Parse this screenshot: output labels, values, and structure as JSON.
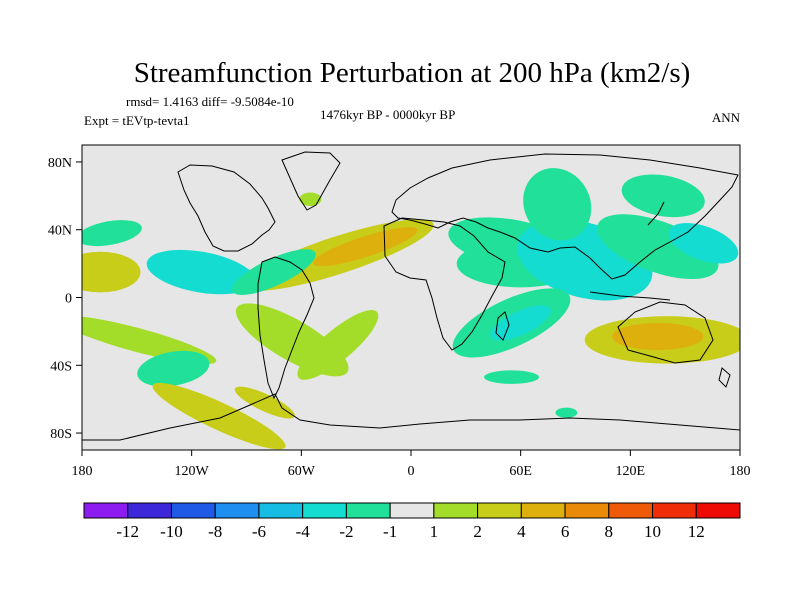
{
  "chart_data": {
    "type": "heatmap",
    "title": "Streamfunction Perturbation at 200 hPa (km2/s)",
    "stats_label": "rmsd= 1.4163 diff= -9.5084e-10",
    "experiment_label": "Expt = tEVtp-tevta1",
    "period_label": "1476kyr BP - 0000kyr BP",
    "season_label": "ANN",
    "x_axis": {
      "range": [
        -180,
        180
      ],
      "ticks": [
        {
          "value": -180,
          "label": "180"
        },
        {
          "value": -120,
          "label": "120W"
        },
        {
          "value": -60,
          "label": "60W"
        },
        {
          "value": 0,
          "label": "0"
        },
        {
          "value": 60,
          "label": "60E"
        },
        {
          "value": 120,
          "label": "120E"
        },
        {
          "value": 180,
          "label": "180"
        }
      ]
    },
    "y_axis": {
      "range": [
        -90,
        90
      ],
      "ticks": [
        {
          "value": 80,
          "label": "80N"
        },
        {
          "value": 40,
          "label": "40N"
        },
        {
          "value": 0,
          "label": "0"
        },
        {
          "value": -40,
          "label": "40S"
        },
        {
          "value": -80,
          "label": "80S"
        }
      ]
    },
    "colorbar": {
      "labels": [
        "-12",
        "-10",
        "-8",
        "-6",
        "-4",
        "-2",
        "-1",
        "1",
        "2",
        "4",
        "6",
        "8",
        "10",
        "12"
      ],
      "colors": [
        "#8c1cf0",
        "#3c28d8",
        "#1f5ae6",
        "#1e8ff0",
        "#17bde3",
        "#14dcd0",
        "#21e09a",
        "#e6e6e6",
        "#a4dc2a",
        "#c8cd1a",
        "#ddb00e",
        "#e98a08",
        "#ee5a07",
        "#ef2d06",
        "#ee0b05"
      ]
    },
    "background_color": "#e6e6e6",
    "features": [
      {
        "name": "n-atlantic-africa-high",
        "lon": -40,
        "lat": 25,
        "rx": 55,
        "ry": 11,
        "rot": -18,
        "value": 3
      },
      {
        "name": "n-atlantic-africa-core",
        "lon": -25,
        "lat": 30,
        "rx": 30,
        "ry": 6,
        "rot": -18,
        "value": 5
      },
      {
        "name": "indian-north-low",
        "lon": 55,
        "lat": 32,
        "rx": 35,
        "ry": 14,
        "rot": 10,
        "value": -1.5
      },
      {
        "name": "asia-low-west",
        "lon": 60,
        "lat": 20,
        "rx": 35,
        "ry": 14,
        "rot": 0,
        "value": -1.5
      },
      {
        "name": "asia-low-central",
        "lon": 95,
        "lat": 22,
        "rx": 38,
        "ry": 22,
        "rot": 15,
        "value": -2.5
      },
      {
        "name": "central-asia-north",
        "lon": 80,
        "lat": 55,
        "rx": 18,
        "ry": 22,
        "rot": -30,
        "value": -1.5
      },
      {
        "name": "w-pacific-band",
        "lon": 135,
        "lat": 30,
        "rx": 35,
        "ry": 15,
        "rot": 20,
        "value": -1.5
      },
      {
        "name": "nw-pacific-core",
        "lon": 160,
        "lat": 32,
        "rx": 20,
        "ry": 10,
        "rot": 20,
        "value": -3
      },
      {
        "name": "nw-pacific-north",
        "lon": 138,
        "lat": 60,
        "rx": 23,
        "ry": 12,
        "rot": 10,
        "value": -1.5
      },
      {
        "name": "nw-pacific-north-inner",
        "lon": 140,
        "lat": 62,
        "rx": 12,
        "ry": 5,
        "rot": 10,
        "value": -1.5
      },
      {
        "name": "ne-pacific-high",
        "lon": -170,
        "lat": 15,
        "rx": 22,
        "ry": 12,
        "rot": 0,
        "value": 3
      },
      {
        "name": "ne-pacific-low",
        "lon": -165,
        "lat": 38,
        "rx": 18,
        "ry": 7,
        "rot": -10,
        "value": -1.5
      },
      {
        "name": "c-america-low",
        "lon": -115,
        "lat": 15,
        "rx": 30,
        "ry": 12,
        "rot": 10,
        "value": -2.5
      },
      {
        "name": "c-america-core",
        "lon": -105,
        "lat": 14,
        "rx": 22,
        "ry": 8,
        "rot": 10,
        "value": -3
      },
      {
        "name": "caribbean-band",
        "lon": -75,
        "lat": 15,
        "rx": 25,
        "ry": 8,
        "rot": -25,
        "value": -1.5
      },
      {
        "name": "s-pacific-band",
        "lon": -150,
        "lat": -25,
        "rx": 45,
        "ry": 7,
        "rot": 15,
        "value": 1.5
      },
      {
        "name": "s-america-band",
        "lon": -65,
        "lat": -25,
        "rx": 35,
        "ry": 12,
        "rot": 30,
        "value": 1.5
      },
      {
        "name": "sw-atlantic-arc",
        "lon": -40,
        "lat": -28,
        "rx": 28,
        "ry": 9,
        "rot": -40,
        "value": 1.5
      },
      {
        "name": "se-pacific-low",
        "lon": -130,
        "lat": -42,
        "rx": 20,
        "ry": 10,
        "rot": -10,
        "value": -1.5
      },
      {
        "name": "s-ocean-high",
        "lon": -105,
        "lat": -70,
        "rx": 40,
        "ry": 8,
        "rot": 25,
        "value": 2
      },
      {
        "name": "s-ocean-high-core",
        "lon": -80,
        "lat": -62,
        "rx": 18,
        "ry": 5,
        "rot": 25,
        "value": 3
      },
      {
        "name": "indian-ocean-low",
        "lon": 55,
        "lat": -15,
        "rx": 35,
        "ry": 14,
        "rot": -25,
        "value": -1.5
      },
      {
        "name": "indian-ocean-core",
        "lon": 60,
        "lat": -15,
        "rx": 18,
        "ry": 7,
        "rot": -25,
        "value": -3
      },
      {
        "name": "australia-high",
        "lon": 140,
        "lat": -25,
        "rx": 45,
        "ry": 14,
        "rot": 0,
        "value": 2
      },
      {
        "name": "australia-core",
        "lon": 135,
        "lat": -23,
        "rx": 25,
        "ry": 8,
        "rot": 0,
        "value": 4
      },
      {
        "name": "s-indian-low",
        "lon": 55,
        "lat": -47,
        "rx": 15,
        "ry": 4,
        "rot": 0,
        "value": -1.5
      },
      {
        "name": "antarctic-low",
        "lon": 85,
        "lat": -68,
        "rx": 6,
        "ry": 3,
        "rot": 0,
        "value": -1.5
      },
      {
        "name": "n-atlantic-low",
        "lon": -55,
        "lat": 58,
        "rx": 6,
        "ry": 4,
        "rot": 0,
        "value": 1.5
      }
    ]
  }
}
